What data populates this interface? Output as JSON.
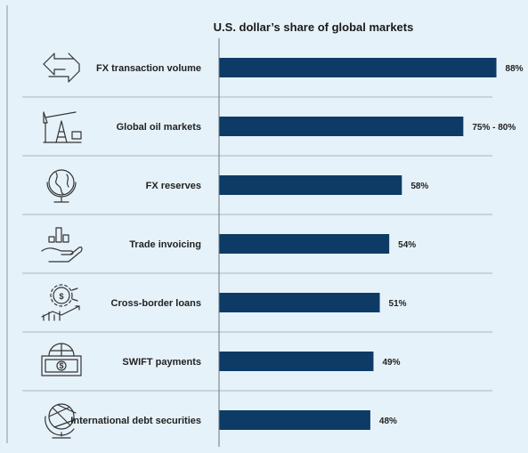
{
  "chart_data": {
    "type": "bar",
    "orientation": "horizontal",
    "title": "U.S. dollar’s share of global markets",
    "categories": [
      "FX transaction volume",
      "Global oil markets",
      "FX reserves",
      "Trade invoicing",
      "Cross-border loans",
      "SWIFT payments",
      "International debt securities"
    ],
    "values": [
      88,
      77.5,
      58,
      54,
      51,
      49,
      48
    ],
    "value_labels": [
      "88%",
      "75% - 80%",
      "58%",
      "54%",
      "51%",
      "49%",
      "48%"
    ],
    "icons": [
      "exchange-arrows-icon",
      "oil-pump-icon",
      "globe-icon",
      "hand-chart-icon",
      "gear-dollar-growth-icon",
      "banknote-dollar-icon",
      "desk-globe-icon"
    ],
    "xlim": [
      0,
      100
    ],
    "bar_color": "#0d3b66",
    "grid": false
  }
}
